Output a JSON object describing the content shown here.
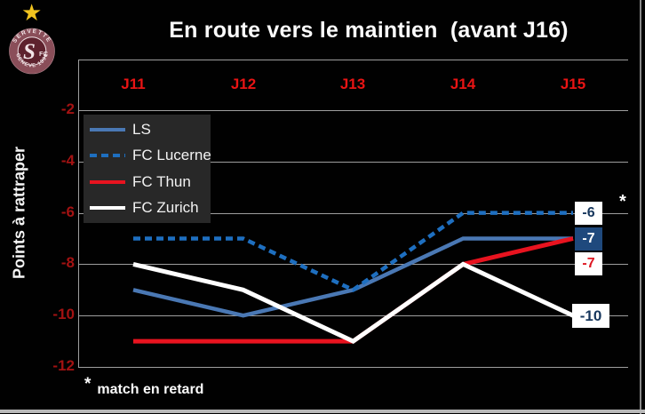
{
  "logo": {
    "star_glyph": "★",
    "arc_top": "SERVETTE",
    "initial": "S",
    "suffix": "FC",
    "arc_bottom": "GENEVE 1890",
    "colors": {
      "star": "#F2C41F",
      "ring": "#8A4E59",
      "inner": "#5E222E",
      "text": "#F2E4E7",
      "rim": "#BA8D96"
    }
  },
  "chart_data": {
    "type": "line",
    "title": "En route vers le maintien  (avant J16)",
    "xlabel": "",
    "ylabel": "Points à rattraper",
    "categories": [
      "J11",
      "J12",
      "J13",
      "J14",
      "J15"
    ],
    "series": [
      {
        "name": "LS",
        "values": [
          -9,
          -10,
          -9,
          -7,
          -7
        ],
        "color": "#4A78B4",
        "style": "solid",
        "width": 4.5
      },
      {
        "name": "FC Lucerne",
        "values": [
          -7,
          -7,
          -9,
          -6,
          -6
        ],
        "color": "#1E6FC0",
        "style": "dashed",
        "dash": "8 5",
        "width": 4.5
      },
      {
        "name": "FC Thun",
        "values": [
          -11,
          -11,
          -11,
          -8,
          -7
        ],
        "color": "#E8131F",
        "style": "solid",
        "width": 5
      },
      {
        "name": "FC Zurich",
        "values": [
          -8,
          -9,
          -11,
          -8,
          -10
        ],
        "color": "#FFFFFF",
        "style": "solid",
        "width": 5
      }
    ],
    "ylim": [
      -12,
      -2
    ],
    "yticks": [
      "-2",
      "-4",
      "-6",
      "-8",
      "-10",
      "-12"
    ],
    "grid": "horizontal gridlines on",
    "legend_position": "inside upper-left",
    "tick_colors": {
      "x": "#E81414",
      "y": "#A31212"
    },
    "end_labels": [
      {
        "text": "-6",
        "fg": "#17375D",
        "bg": "#FFFFFF"
      },
      {
        "text": "-7",
        "fg": "#FFFFFF",
        "bg": "#1F497D"
      },
      {
        "text": "-7",
        "fg": "#DE1621",
        "bg": "#FFFFFF"
      },
      {
        "text": "-10",
        "fg": "#17375D",
        "bg": "#FFFFFF"
      }
    ],
    "retard_marker": "*"
  },
  "footnote": {
    "marker": "*",
    "text": "match en retard"
  }
}
